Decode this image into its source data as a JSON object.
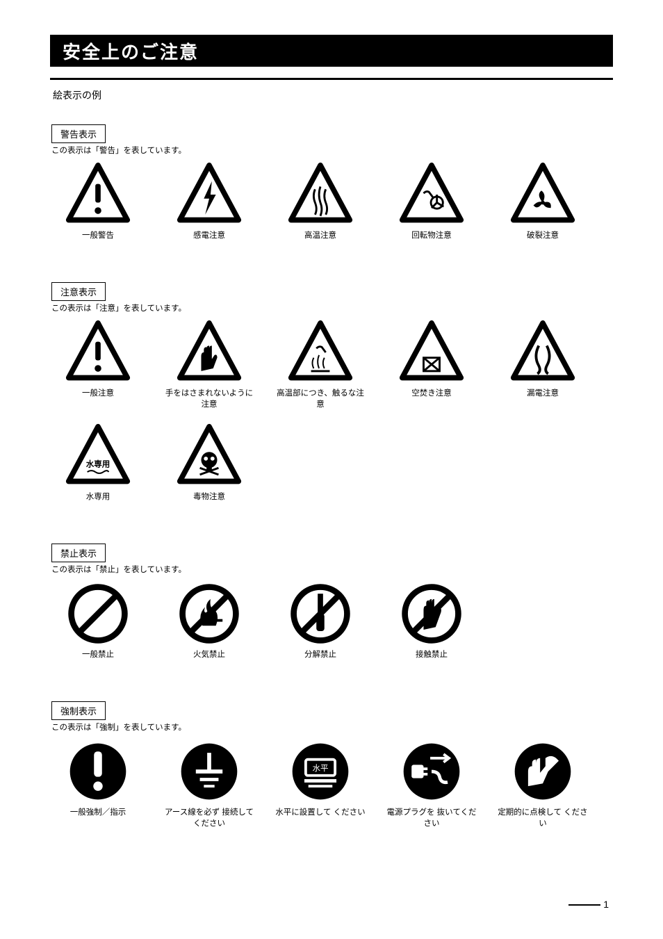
{
  "header": "安全上のご注意",
  "intro": "絵表示の例",
  "page_number": "1",
  "sections": [
    {
      "key": "warning",
      "label": "警告表示",
      "sub": "この表示は「警告」を表しています。",
      "icons": [
        {
          "name": "triangle-exclamation-icon",
          "svg": "tri_exclaim",
          "cap": "一般警告"
        },
        {
          "name": "triangle-bolt-icon",
          "svg": "tri_bolt",
          "cap": "感電注意"
        },
        {
          "name": "triangle-heat-icon",
          "svg": "tri_heat",
          "cap": "高温注意"
        },
        {
          "name": "triangle-pinch-icon",
          "svg": "tri_pinch",
          "cap": "回転物注意"
        },
        {
          "name": "triangle-fan-icon",
          "svg": "tri_fan",
          "cap": "破裂注意"
        }
      ]
    },
    {
      "key": "caution",
      "label": "注意表示",
      "sub": "この表示は「注意」を表しています。",
      "icons": [
        {
          "name": "triangle-exclamation-icon",
          "svg": "tri_exclaim",
          "cap": "一般注意"
        },
        {
          "name": "triangle-hand-stop-icon",
          "svg": "tri_handstop",
          "cap": "手をはさまれないように注意"
        },
        {
          "name": "triangle-hot-surface-icon",
          "svg": "tri_hotsurf",
          "cap": "高温部につき、触るな注意"
        },
        {
          "name": "triangle-no-container-icon",
          "svg": "tri_nocont",
          "cap": "空焚き注意"
        },
        {
          "name": "triangle-tentacle-icon",
          "svg": "tri_tent",
          "cap": "漏電注意"
        },
        {
          "name": "triangle-water-only-icon",
          "svg": "tri_water",
          "cap": "水専用"
        },
        {
          "name": "triangle-skull-icon",
          "svg": "tri_skull",
          "cap": "毒物注意"
        }
      ]
    },
    {
      "key": "prohibit",
      "label": "禁止表示",
      "sub": "この表示は「禁止」を表しています。",
      "icons": [
        {
          "name": "circle-slash-icon",
          "svg": "circ_slash",
          "cap": "一般禁止"
        },
        {
          "name": "circle-no-fire-icon",
          "svg": "circ_nofire",
          "cap": "火気禁止"
        },
        {
          "name": "circle-no-disassemble-icon",
          "svg": "circ_nodisasm",
          "cap": "分解禁止"
        },
        {
          "name": "circle-no-touch-icon",
          "svg": "circ_notouch",
          "cap": "接触禁止"
        }
      ]
    },
    {
      "key": "mandatory",
      "label": "強制表示",
      "sub": "この表示は「強制」を表しています。",
      "icons": [
        {
          "name": "circle-exclamation-icon",
          "svg": "circ_exclaim",
          "cap": "一般強制／指示"
        },
        {
          "name": "circle-ground-icon",
          "svg": "circ_ground",
          "cap": "アース線を必ず\n接続してください"
        },
        {
          "name": "circle-level-icon",
          "svg": "circ_level",
          "cap": "水平に設置して\nください"
        },
        {
          "name": "circle-unplug-icon",
          "svg": "circ_unplug",
          "cap": "電源プラグを\n抜いてください"
        },
        {
          "name": "circle-inspect-icon",
          "svg": "circ_inspect",
          "cap": "定期的に点検して\nください"
        }
      ]
    }
  ]
}
